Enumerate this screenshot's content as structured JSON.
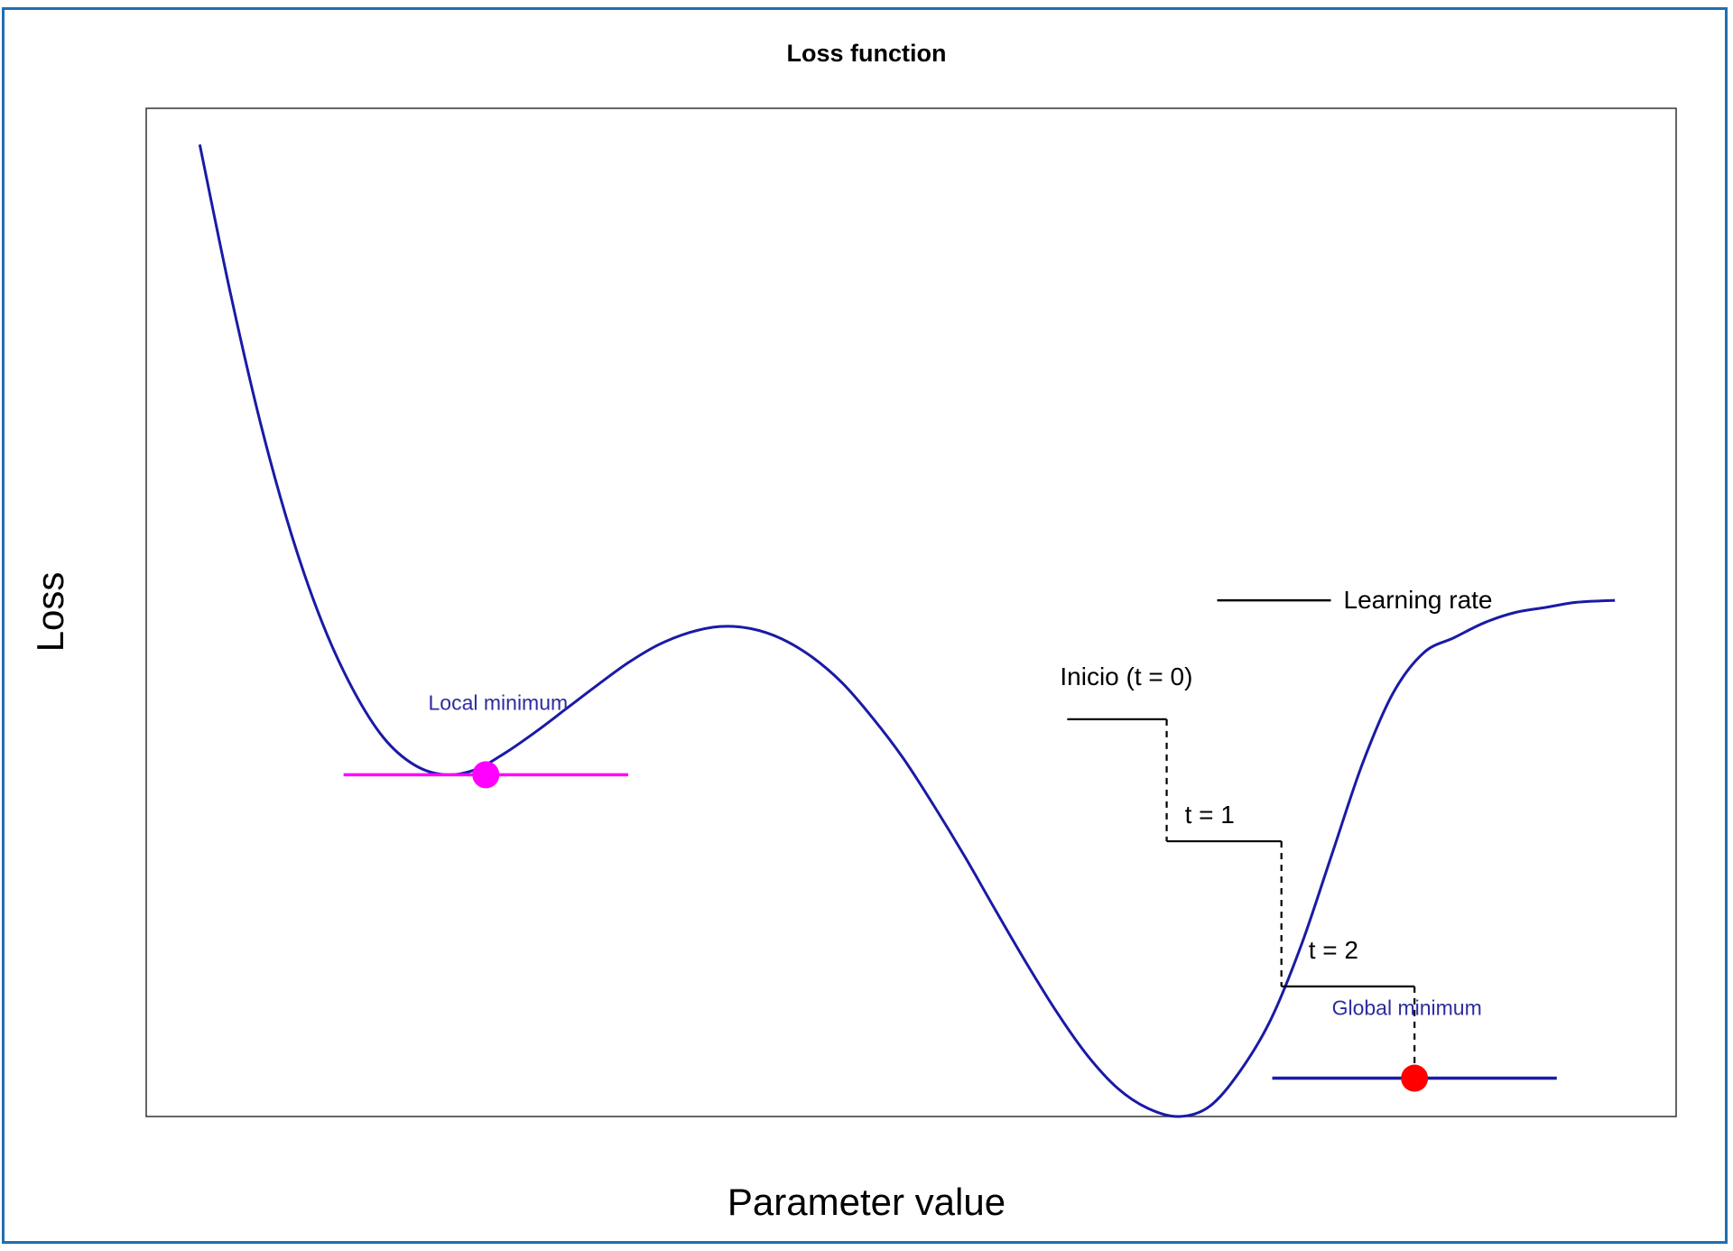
{
  "chart_data": {
    "type": "line",
    "title": "Loss function",
    "xlabel": "Parameter value",
    "ylabel": "Loss",
    "grid": false,
    "axes_ticks": false,
    "xlim": [
      0,
      10
    ],
    "ylim": [
      0,
      10
    ],
    "series": [
      {
        "color": "#1a1aa6",
        "x": [
          0.35,
          0.55,
          0.75,
          0.95,
          1.15,
          1.35,
          1.55,
          1.75,
          1.95,
          2.15,
          2.35,
          2.55,
          2.75,
          2.95,
          3.15,
          3.35,
          3.55,
          3.75,
          3.95,
          4.15,
          4.35,
          4.55,
          4.75,
          4.95,
          5.15,
          5.35,
          5.55,
          5.75,
          5.95,
          6.15,
          6.35,
          6.55,
          6.75,
          6.95,
          7.15,
          7.35,
          7.55,
          7.75,
          7.95,
          8.15,
          8.35,
          8.55,
          8.75,
          8.95,
          9.15,
          9.35,
          9.6
        ],
        "y": [
          9.64,
          8.17,
          6.86,
          5.77,
          4.9,
          4.24,
          3.76,
          3.49,
          3.39,
          3.44,
          3.61,
          3.82,
          4.05,
          4.28,
          4.5,
          4.68,
          4.8,
          4.86,
          4.84,
          4.74,
          4.56,
          4.3,
          3.95,
          3.55,
          3.08,
          2.58,
          2.05,
          1.53,
          1.04,
          0.61,
          0.28,
          0.08,
          0.0,
          0.1,
          0.45,
          0.96,
          1.7,
          2.6,
          3.5,
          4.2,
          4.6,
          4.75,
          4.9,
          5.0,
          5.05,
          5.1,
          5.12
        ]
      }
    ],
    "local_minimum": {
      "label": "Local minimum",
      "x": 2.22,
      "y": 3.39,
      "color": "#ff00ff"
    },
    "global_minimum": {
      "label": "Global minimum",
      "x": 8.29,
      "y": 0.38,
      "color": "#ff0000"
    },
    "legend": {
      "label": "Learning rate",
      "position": "middle-right"
    },
    "steps": [
      {
        "label": "Inicio (t = 0)",
        "x": 6.02,
        "y": 3.94
      },
      {
        "label": "t = 1",
        "x": 6.67,
        "y": 2.73
      },
      {
        "label": "t = 2",
        "x": 7.42,
        "y": 1.29
      },
      {
        "label": "",
        "x": 8.29,
        "y": 0.38
      }
    ],
    "colors": {
      "curve": "#1a1aa6",
      "annotation_text": "#2c2ca0",
      "frame_border": "#1f6fb2"
    }
  }
}
